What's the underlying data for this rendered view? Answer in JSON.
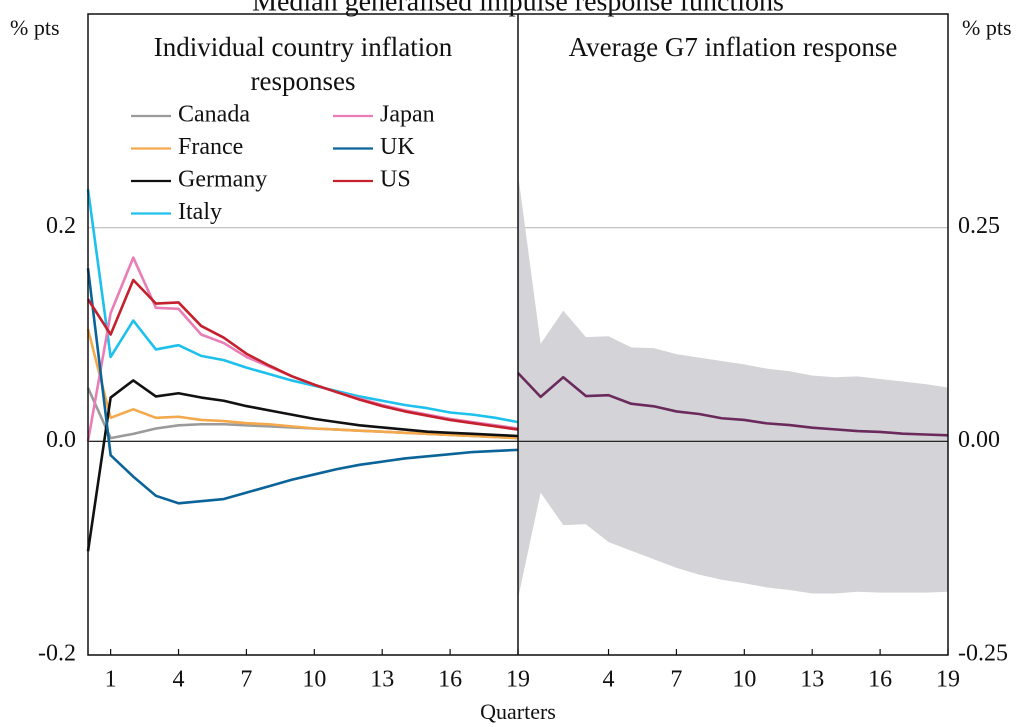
{
  "chart_data": [
    {
      "type": "line",
      "title": "Median generalised impulse response functions",
      "subtitle": "Individual country inflation responses",
      "ylabel": "% pts",
      "xlabel": "Quarters",
      "x": [
        0,
        1,
        2,
        3,
        4,
        5,
        6,
        7,
        8,
        9,
        10,
        11,
        12,
        13,
        14,
        15,
        16,
        17,
        18,
        19
      ],
      "xlim": [
        0,
        19
      ],
      "xticks": [
        1,
        4,
        7,
        10,
        13,
        16,
        19
      ],
      "ylim": [
        -0.2,
        0.4
      ],
      "yticks": [
        {
          "value": -0.2,
          "label": "-0.2"
        },
        {
          "value": 0,
          "label": "0.0"
        },
        {
          "value": 0.2,
          "label": "0.2"
        }
      ],
      "grid": true,
      "legend": "top-left",
      "series": [
        {
          "name": "Canada",
          "color": "#9a9a9a",
          "values": [
            0.05,
            0.003,
            0.007,
            0.012,
            0.015,
            0.016,
            0.016,
            0.015,
            0.014,
            0.013,
            0.012,
            0.011,
            0.01,
            0.009,
            0.008,
            0.007,
            0.006,
            0.005,
            0.004,
            0.003
          ]
        },
        {
          "name": "France",
          "color": "#f4a94c",
          "values": [
            0.105,
            0.022,
            0.03,
            0.022,
            0.023,
            0.02,
            0.019,
            0.017,
            0.016,
            0.014,
            0.012,
            0.011,
            0.01,
            0.009,
            0.008,
            0.007,
            0.006,
            0.005,
            0.004,
            0.003
          ]
        },
        {
          "name": "Germany",
          "color": "#111111",
          "values": [
            -0.103,
            0.041,
            0.057,
            0.042,
            0.045,
            0.041,
            0.038,
            0.033,
            0.029,
            0.025,
            0.021,
            0.018,
            0.015,
            0.013,
            0.011,
            0.009,
            0.008,
            0.007,
            0.006,
            0.005
          ]
        },
        {
          "name": "Italy",
          "color": "#1ec0ec",
          "values": [
            0.236,
            0.079,
            0.113,
            0.086,
            0.09,
            0.08,
            0.076,
            0.069,
            0.063,
            0.057,
            0.052,
            0.047,
            0.042,
            0.038,
            0.034,
            0.031,
            0.027,
            0.025,
            0.022,
            0.018
          ]
        },
        {
          "name": "Japan",
          "color": "#e87eb5",
          "values": [
            0.0,
            0.12,
            0.172,
            0.125,
            0.124,
            0.1,
            0.092,
            0.079,
            0.07,
            0.061,
            0.053,
            0.046,
            0.04,
            0.034,
            0.029,
            0.025,
            0.021,
            0.018,
            0.015,
            0.012
          ]
        },
        {
          "name": "UK",
          "color": "#0a6399",
          "values": [
            0.162,
            -0.013,
            -0.033,
            -0.051,
            -0.058,
            -0.056,
            -0.054,
            -0.048,
            -0.042,
            -0.036,
            -0.031,
            -0.026,
            -0.022,
            -0.019,
            -0.016,
            -0.014,
            -0.012,
            -0.01,
            -0.009,
            -0.008
          ]
        },
        {
          "name": "US",
          "color": "#c4202d",
          "values": [
            0.133,
            0.1,
            0.151,
            0.129,
            0.13,
            0.108,
            0.097,
            0.082,
            0.071,
            0.061,
            0.053,
            0.046,
            0.039,
            0.033,
            0.028,
            0.024,
            0.02,
            0.017,
            0.014,
            0.011
          ]
        }
      ]
    },
    {
      "type": "line",
      "subtitle": "Average G7 inflation response",
      "ylabel": "% pts",
      "x": [
        0,
        1,
        2,
        3,
        4,
        5,
        6,
        7,
        8,
        9,
        10,
        11,
        12,
        13,
        14,
        15,
        16,
        17,
        18,
        19
      ],
      "xlim": [
        0,
        19
      ],
      "xticks": [
        4,
        7,
        10,
        13,
        16,
        19
      ],
      "ylim": [
        -0.25,
        0.5
      ],
      "yticks": [
        {
          "value": -0.25,
          "label": "-0.25"
        },
        {
          "value": 0,
          "label": "0.00"
        },
        {
          "value": 0.25,
          "label": "0.25"
        }
      ],
      "grid": true,
      "band": {
        "color": "#d4d4d8",
        "upper": [
          0.313,
          0.114,
          0.153,
          0.122,
          0.123,
          0.11,
          0.109,
          0.102,
          0.098,
          0.094,
          0.09,
          0.085,
          0.082,
          0.077,
          0.075,
          0.076,
          0.073,
          0.07,
          0.067,
          0.063
        ],
        "lower": [
          -0.184,
          -0.06,
          -0.098,
          -0.097,
          -0.118,
          -0.128,
          -0.138,
          -0.148,
          -0.156,
          -0.162,
          -0.166,
          -0.171,
          -0.174,
          -0.178,
          -0.178,
          -0.176,
          -0.177,
          -0.177,
          -0.177,
          -0.176
        ]
      },
      "series": [
        {
          "color": "#6a2a5c",
          "values": [
            0.08,
            0.052,
            0.075,
            0.053,
            0.054,
            0.044,
            0.041,
            0.035,
            0.032,
            0.027,
            0.025,
            0.021,
            0.019,
            0.016,
            0.014,
            0.012,
            0.011,
            0.009,
            0.008,
            0.007
          ]
        }
      ]
    }
  ]
}
